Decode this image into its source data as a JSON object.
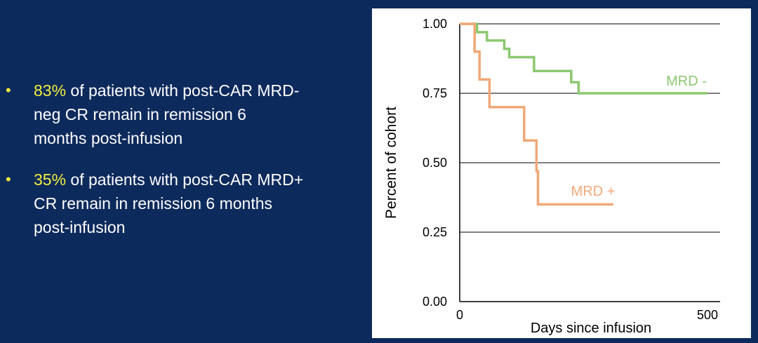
{
  "bullets": [
    {
      "highlight": "83%",
      "text_line1": " of patients with post-CAR MRD-",
      "text_line2": "neg CR remain in remission 6",
      "text_line3": "months post-infusion"
    },
    {
      "highlight": "35%",
      "text_line1": " of patients with post-CAR MRD+",
      "text_line2": "CR remain in remission 6 months",
      "text_line3": "post-infusion"
    }
  ],
  "colors": {
    "background": "#0d2a5c",
    "highlight": "#f2ef3c",
    "mrd_neg": "#8cc870",
    "mrd_pos": "#f0a878"
  },
  "chart_data": {
    "type": "line",
    "xlabel": "Days since infusion",
    "ylabel": "Percent of cohort",
    "xlim": [
      0,
      500
    ],
    "ylim": [
      0,
      1.0
    ],
    "x_ticks": [
      "0",
      "500"
    ],
    "y_ticks": [
      "0.00",
      "0.25",
      "0.50",
      "0.75",
      "1.00"
    ],
    "grid": "horizontal",
    "series": [
      {
        "name": "MRD -",
        "color": "#8cc870",
        "x": [
          0,
          35,
          35,
          55,
          55,
          90,
          90,
          100,
          100,
          110,
          110,
          150,
          150,
          225,
          225,
          240,
          240,
          500
        ],
        "y": [
          1.0,
          1.0,
          0.97,
          0.97,
          0.94,
          0.94,
          0.91,
          0.91,
          0.88,
          0.88,
          0.88,
          0.88,
          0.83,
          0.83,
          0.79,
          0.79,
          0.75,
          0.75
        ]
      },
      {
        "name": "MRD +",
        "color": "#f0a878",
        "x": [
          0,
          30,
          30,
          40,
          40,
          60,
          60,
          130,
          130,
          155,
          155,
          158,
          158,
          310
        ],
        "y": [
          1.0,
          1.0,
          0.9,
          0.9,
          0.8,
          0.8,
          0.7,
          0.7,
          0.58,
          0.58,
          0.47,
          0.47,
          0.35,
          0.35
        ]
      }
    ]
  }
}
